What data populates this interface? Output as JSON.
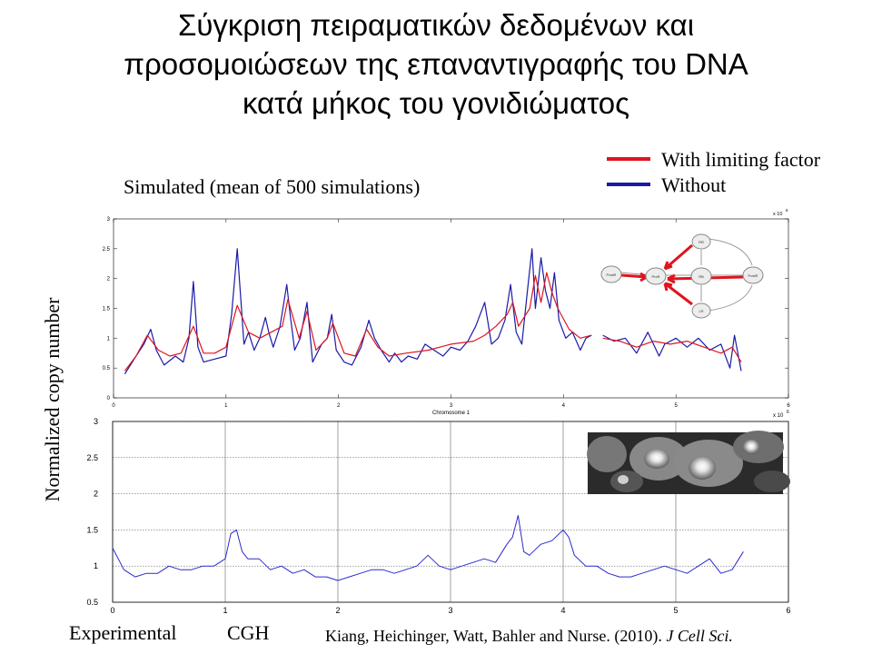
{
  "title": {
    "line1": "Σύγκριση πειραματικών δεδομένων και",
    "line2": "προσομοιώσεων της επαναντιγραφής του DNA",
    "line3": "κατά μήκος του γονιδιώματος"
  },
  "legend": {
    "items": [
      {
        "label": "With limiting factor",
        "color": "#e0141e"
      },
      {
        "label": "Without",
        "color": "#1a1aa8"
      }
    ]
  },
  "simulated_label": "Simulated (mean of 500 simulations)",
  "y_axis_label": "Normalized copy number",
  "experimental_label": "Experimental",
  "cgh_label": "CGH",
  "citation": {
    "text": "Kiang,  Heichinger, Watt, Bahler and Nurse. (2010).",
    "journal": "J Cell Sci."
  },
  "inset_diagram": {
    "nodes": [
      "PostR",
      "PreR",
      "RB",
      "PostR",
      "RR",
      "LR"
    ]
  },
  "chart_data": [
    {
      "type": "line",
      "xlabel": "Chromosome 1",
      "ylabel": "",
      "x_multiplier": "x 10",
      "x_multiplier_exp": "6",
      "xlim": [
        0,
        6
      ],
      "ylim": [
        0,
        3
      ],
      "x_ticks": [
        "0",
        "1",
        "2",
        "3",
        "4",
        "5",
        "6"
      ],
      "y_ticks": [
        "0",
        "0.5",
        "1",
        "1.5",
        "2",
        "2.5",
        "3"
      ],
      "grid": false,
      "series": [
        {
          "name": "Without",
          "color": "#1a1aa8",
          "x": [
            0.1,
            0.2,
            0.27,
            0.33,
            0.38,
            0.45,
            0.55,
            0.62,
            0.67,
            0.71,
            0.75,
            0.8,
            0.9,
            1.0,
            1.05,
            1.1,
            1.16,
            1.2,
            1.25,
            1.3,
            1.35,
            1.38,
            1.42,
            1.48,
            1.54,
            1.57,
            1.61,
            1.66,
            1.72,
            1.77,
            1.85,
            1.9,
            1.94,
            1.98,
            2.05,
            2.12,
            2.2,
            2.27,
            2.32,
            2.38,
            2.45,
            2.5,
            2.56,
            2.62,
            2.7,
            2.77,
            2.85,
            2.93,
            3.0,
            3.08,
            3.15,
            3.22,
            3.3,
            3.36,
            3.42,
            3.48,
            3.53,
            3.58,
            3.63,
            3.68,
            3.72,
            3.75,
            3.8,
            3.84,
            3.88,
            3.92,
            3.96,
            4.02,
            4.08,
            4.15,
            4.2,
            4.25
          ],
          "y": [
            0.4,
            0.7,
            0.9,
            1.15,
            0.8,
            0.55,
            0.7,
            0.6,
            1.0,
            1.95,
            0.85,
            0.6,
            0.65,
            0.7,
            1.4,
            2.5,
            0.9,
            1.1,
            0.8,
            1.0,
            1.35,
            1.1,
            0.85,
            1.2,
            1.9,
            1.4,
            0.8,
            1.0,
            1.6,
            0.6,
            0.9,
            1.0,
            1.4,
            0.8,
            0.6,
            0.55,
            0.85,
            1.3,
            1.0,
            0.8,
            0.6,
            0.75,
            0.6,
            0.7,
            0.65,
            0.9,
            0.8,
            0.7,
            0.85,
            0.8,
            0.95,
            1.2,
            1.6,
            0.9,
            1.0,
            1.3,
            1.9,
            1.1,
            0.9,
            1.8,
            2.5,
            1.5,
            2.35,
            1.8,
            1.5,
            2.1,
            1.3,
            1.0,
            1.1,
            0.8,
            1.0,
            1.05
          ]
        },
        {
          "name": "With limiting factor",
          "color": "#e0141e",
          "x": [
            0.1,
            0.2,
            0.3,
            0.4,
            0.5,
            0.6,
            0.71,
            0.8,
            0.9,
            1.0,
            1.1,
            1.2,
            1.3,
            1.4,
            1.5,
            1.55,
            1.65,
            1.72,
            1.8,
            1.9,
            1.95,
            2.05,
            2.15,
            2.25,
            2.35,
            2.45,
            2.6,
            2.8,
            3.0,
            3.2,
            3.3,
            3.4,
            3.5,
            3.55,
            3.6,
            3.7,
            3.75,
            3.8,
            3.85,
            3.9,
            3.95,
            4.05,
            4.15,
            4.25
          ],
          "y": [
            0.45,
            0.7,
            1.05,
            0.8,
            0.7,
            0.75,
            1.2,
            0.75,
            0.75,
            0.85,
            1.55,
            1.1,
            1.0,
            1.1,
            1.2,
            1.65,
            1.0,
            1.45,
            0.8,
            1.0,
            1.25,
            0.75,
            0.7,
            1.15,
            0.85,
            0.7,
            0.75,
            0.8,
            0.9,
            0.95,
            1.05,
            1.2,
            1.4,
            1.6,
            1.2,
            1.5,
            2.05,
            1.6,
            2.1,
            1.75,
            1.5,
            1.15,
            1.0,
            1.05
          ]
        },
        {
          "name": "Without",
          "color": "#1a1aa8",
          "x": [
            4.35,
            4.45,
            4.55,
            4.65,
            4.75,
            4.85,
            4.9,
            5.0,
            5.1,
            5.2,
            5.3,
            5.4,
            5.48,
            5.52,
            5.58
          ],
          "y": [
            1.05,
            0.95,
            1.0,
            0.75,
            1.1,
            0.7,
            0.9,
            1.0,
            0.85,
            1.0,
            0.8,
            0.9,
            0.5,
            1.05,
            0.45
          ]
        },
        {
          "name": "With limiting factor",
          "color": "#e0141e",
          "x": [
            4.35,
            4.5,
            4.65,
            4.8,
            4.95,
            5.1,
            5.25,
            5.4,
            5.5,
            5.58
          ],
          "y": [
            1.0,
            0.95,
            0.85,
            0.95,
            0.9,
            0.95,
            0.85,
            0.75,
            0.85,
            0.6
          ]
        }
      ]
    },
    {
      "type": "line",
      "xlabel": "",
      "ylabel": "",
      "x_multiplier": "x 10",
      "x_multiplier_exp": "6",
      "xlim": [
        0,
        6
      ],
      "ylim": [
        0.5,
        3
      ],
      "x_ticks": [
        "0",
        "1",
        "2",
        "3",
        "4",
        "5",
        "6"
      ],
      "y_ticks": [
        "0.5",
        "1",
        "1.5",
        "2",
        "2.5",
        "3"
      ],
      "grid": true,
      "series": [
        {
          "name": "",
          "color": "#2a2ad0",
          "x": [
            0.0,
            0.1,
            0.2,
            0.3,
            0.4,
            0.5,
            0.6,
            0.7,
            0.8,
            0.9,
            1.0,
            1.05,
            1.1,
            1.15,
            1.2,
            1.3,
            1.4,
            1.5,
            1.6,
            1.7,
            1.8,
            1.9,
            2.0,
            2.1,
            2.2,
            2.3,
            2.4,
            2.5,
            2.6,
            2.7,
            2.8,
            2.9,
            3.0,
            3.1,
            3.2,
            3.3,
            3.4,
            3.5,
            3.55,
            3.6,
            3.65,
            3.7,
            3.8,
            3.9,
            4.0,
            4.05,
            4.1,
            4.2,
            4.3,
            4.4,
            4.5,
            4.6,
            4.7,
            4.8,
            4.9,
            5.0,
            5.1,
            5.2,
            5.3,
            5.4,
            5.5,
            5.6
          ],
          "y": [
            1.25,
            0.95,
            0.85,
            0.9,
            0.9,
            1.0,
            0.95,
            0.95,
            1.0,
            1.0,
            1.1,
            1.45,
            1.5,
            1.2,
            1.1,
            1.1,
            0.95,
            1.0,
            0.9,
            0.95,
            0.85,
            0.85,
            0.8,
            0.85,
            0.9,
            0.95,
            0.95,
            0.9,
            0.95,
            1.0,
            1.15,
            1.0,
            0.95,
            1.0,
            1.05,
            1.1,
            1.05,
            1.3,
            1.4,
            1.7,
            1.2,
            1.15,
            1.3,
            1.35,
            1.5,
            1.4,
            1.15,
            1.0,
            1.0,
            0.9,
            0.85,
            0.85,
            0.9,
            0.95,
            1.0,
            0.95,
            0.9,
            1.0,
            1.1,
            0.9,
            0.95,
            1.2
          ]
        }
      ]
    }
  ]
}
